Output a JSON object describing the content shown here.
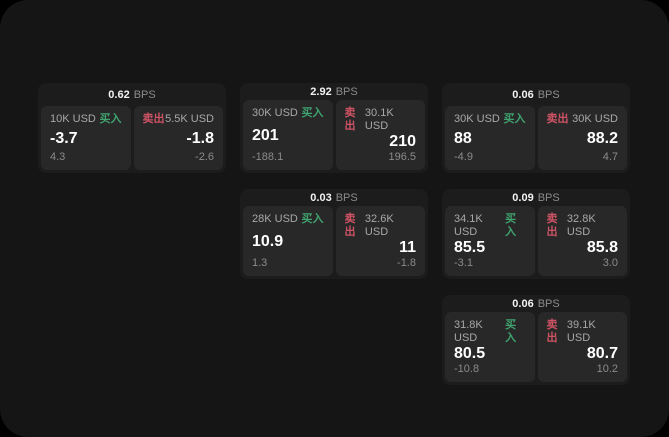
{
  "labels": {
    "bps_suffix": "BPS",
    "buy": "买入",
    "sell": "卖出"
  },
  "colors": {
    "buy_green": "#3fa36f",
    "sell_red": "#cd5364",
    "surface": "#151515",
    "card": "#1c1c1c",
    "panel": "#282828"
  },
  "cards": [
    {
      "bps": "0.62",
      "buy": {
        "size": "10K USD",
        "price": "-3.7",
        "delta": "4.3"
      },
      "sell": {
        "size": "5.5K USD",
        "price": "-1.8",
        "delta": "-2.6"
      }
    },
    {
      "bps": "2.92",
      "buy": {
        "size": "30K USD",
        "price": "201",
        "delta": "-188.1"
      },
      "sell": {
        "size": "30.1K USD",
        "price": "210",
        "delta": "196.5"
      }
    },
    {
      "bps": "0.06",
      "buy": {
        "size": "30K USD",
        "price": "88",
        "delta": "-4.9"
      },
      "sell": {
        "size": "30K USD",
        "price": "88.2",
        "delta": "4.7"
      }
    },
    {
      "bps": "0.03",
      "buy": {
        "size": "28K USD",
        "price": "10.9",
        "delta": "1.3"
      },
      "sell": {
        "size": "32.6K USD",
        "price": "11",
        "delta": "-1.8"
      }
    },
    {
      "bps": "0.09",
      "buy": {
        "size": "34.1K USD",
        "price": "85.5",
        "delta": "-3.1"
      },
      "sell": {
        "size": "32.8K USD",
        "price": "85.8",
        "delta": "3.0"
      }
    },
    {
      "bps": "0.06",
      "buy": {
        "size": "31.8K USD",
        "price": "80.5",
        "delta": "-10.8"
      },
      "sell": {
        "size": "39.1K USD",
        "price": "80.7",
        "delta": "10.2"
      }
    }
  ]
}
